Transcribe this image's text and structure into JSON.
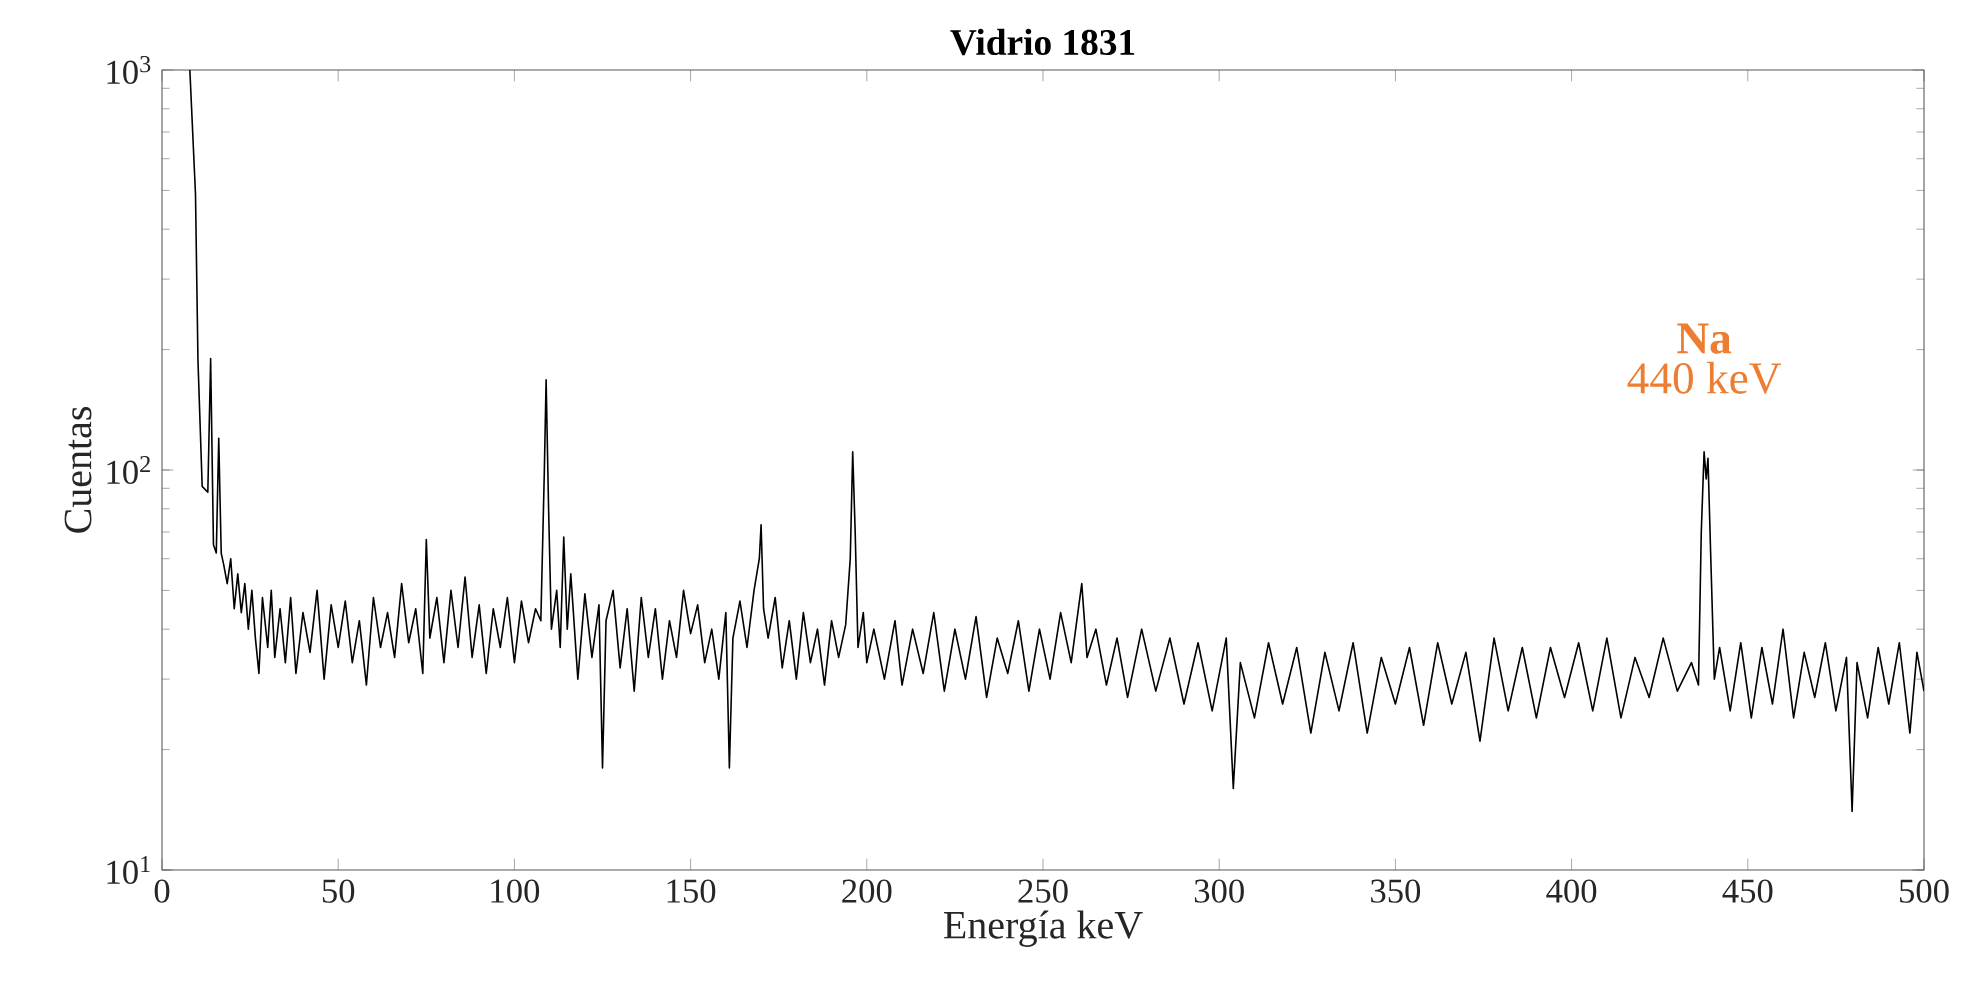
{
  "chart_data": {
    "type": "line",
    "title": "Vidrio 1831",
    "xlabel": "Energía keV",
    "ylabel": "Cuentas",
    "log": "y",
    "grid": false,
    "marker": "none",
    "line_style": "solid",
    "xlim": [
      0,
      500
    ],
    "xticks": [
      0,
      50,
      100,
      150,
      200,
      250,
      300,
      350,
      400,
      450,
      500
    ],
    "ylim": [
      10,
      1000
    ],
    "yticks": [
      {
        "value": 10,
        "label": "10$^{1}$"
      },
      {
        "value": 100,
        "label": "10$^{2}$"
      },
      {
        "value": 1000,
        "label": "10$^{3}$"
      }
    ],
    "annotations": [
      {
        "text": "**Na**",
        "x": 437.6,
        "y": 111
      },
      {
        "text": "440 keV",
        "x": 437.6,
        "y": 111
      }
    ],
    "series": [
      {
        "color": "#000000",
        "x": [
          7.9,
          9.5,
          10.2,
          11.4,
          13,
          13.8,
          14.6,
          15.4,
          16.1,
          16.8,
          17.5,
          18.5,
          19.5,
          20.5,
          21.5,
          22.5,
          23.5,
          24.5,
          25.5,
          26.5,
          27.5,
          28.5,
          30,
          31,
          32,
          33.5,
          35,
          36.5,
          38,
          40,
          42,
          44,
          46,
          48,
          50,
          52,
          54,
          56,
          58,
          60,
          62,
          64,
          66,
          68,
          70,
          72,
          74,
          75,
          76,
          78,
          80,
          82,
          84,
          86,
          88,
          90,
          92,
          94,
          96,
          98,
          100,
          102,
          104,
          106,
          107.5,
          108.5,
          109,
          109.7,
          110.5,
          112,
          113,
          114,
          115,
          116,
          118,
          120,
          122,
          124,
          125,
          126,
          128,
          130,
          132,
          134,
          136,
          138,
          140,
          142,
          144,
          146,
          148,
          150,
          152,
          154,
          156,
          158,
          160,
          161,
          162,
          164,
          166,
          168,
          169.5,
          170,
          170.7,
          172,
          174,
          176,
          178,
          180,
          182,
          184,
          186,
          188,
          190,
          192,
          194,
          195.3,
          196,
          196.7,
          197.5,
          199,
          200,
          202,
          205,
          208,
          210,
          213,
          216,
          219,
          222,
          225,
          228,
          231,
          234,
          237,
          240,
          243,
          246,
          249,
          252,
          255,
          258,
          261,
          262.5,
          265,
          268,
          271,
          274,
          278,
          282,
          286,
          290,
          294,
          298,
          302,
          304,
          306,
          310,
          314,
          318,
          322,
          326,
          330,
          334,
          338,
          342,
          346,
          350,
          354,
          358,
          362,
          366,
          370,
          374,
          378,
          382,
          386,
          390,
          394,
          398,
          402,
          406,
          410,
          414,
          418,
          422,
          426,
          430,
          434,
          436,
          436.8,
          437.6,
          438.2,
          438.7,
          439.5,
          440.5,
          442,
          445,
          448,
          451,
          454,
          457,
          460,
          463,
          466,
          469,
          472,
          475,
          478,
          479.6,
          481,
          484,
          487,
          490,
          493,
          496,
          498,
          500
        ],
        "values": [
          1000,
          490,
          188,
          91,
          88,
          190,
          65,
          62,
          120,
          62,
          58,
          52,
          60,
          45,
          55,
          44,
          52,
          40,
          50,
          38,
          31,
          48,
          36,
          50,
          34,
          45,
          33,
          48,
          31,
          44,
          35,
          50,
          30,
          46,
          36,
          47,
          33,
          42,
          29,
          48,
          36,
          44,
          34,
          52,
          37,
          45,
          31,
          67,
          38,
          48,
          33,
          50,
          36,
          54,
          34,
          46,
          31,
          45,
          36,
          48,
          33,
          47,
          37,
          45,
          42,
          100,
          168,
          80,
          40,
          50,
          36,
          68,
          40,
          55,
          30,
          49,
          34,
          46,
          18,
          42,
          50,
          32,
          45,
          28,
          48,
          34,
          45,
          30,
          42,
          34,
          50,
          39,
          46,
          33,
          40,
          30,
          44,
          18,
          38,
          47,
          36,
          50,
          60,
          73,
          45,
          38,
          48,
          32,
          42,
          30,
          44,
          33,
          40,
          29,
          42,
          34,
          41,
          60,
          111,
          70,
          36,
          44,
          33,
          40,
          30,
          42,
          29,
          40,
          31,
          44,
          28,
          40,
          30,
          43,
          27,
          38,
          31,
          42,
          28,
          40,
          30,
          44,
          33,
          52,
          34,
          40,
          29,
          38,
          27,
          40,
          28,
          38,
          26,
          37,
          25,
          38,
          16,
          33,
          24,
          37,
          26,
          36,
          22,
          35,
          25,
          37,
          22,
          34,
          26,
          36,
          23,
          37,
          26,
          35,
          21,
          38,
          25,
          36,
          24,
          36,
          27,
          37,
          25,
          38,
          24,
          34,
          27,
          38,
          28,
          33,
          29,
          70,
          111,
          95,
          107,
          60,
          30,
          36,
          25,
          37,
          24,
          36,
          26,
          40,
          24,
          35,
          27,
          37,
          25,
          34,
          14,
          33,
          24,
          36,
          26,
          37,
          22,
          35,
          28
        ]
      }
    ]
  }
}
